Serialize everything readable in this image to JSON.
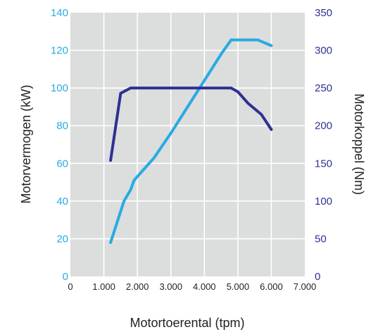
{
  "chart_data": {
    "type": "line",
    "xlabel": "Motortoerental (tpm)",
    "ylabel_left": "Motorvermogen (kW)",
    "ylabel_right": "Motorkoppel (Nm)",
    "xlim": [
      0,
      7000
    ],
    "ylim_left": [
      0,
      140
    ],
    "ylim_right": [
      0,
      350
    ],
    "grid": true,
    "x_ticks": [
      {
        "value": 0,
        "label": "0"
      },
      {
        "value": 1000,
        "label": "1.000"
      },
      {
        "value": 2000,
        "label": "2.000"
      },
      {
        "value": 3000,
        "label": "3.000"
      },
      {
        "value": 4000,
        "label": "4.000"
      },
      {
        "value": 5000,
        "label": "5.000"
      },
      {
        "value": 6000,
        "label": "6.000"
      },
      {
        "value": 7000,
        "label": "7.000"
      }
    ],
    "y_ticks_left": [
      {
        "value": 0,
        "label": "0"
      },
      {
        "value": 20,
        "label": "20"
      },
      {
        "value": 40,
        "label": "40"
      },
      {
        "value": 60,
        "label": "60"
      },
      {
        "value": 80,
        "label": "80"
      },
      {
        "value": 100,
        "label": "100"
      },
      {
        "value": 120,
        "label": "120"
      },
      {
        "value": 140,
        "label": "140"
      }
    ],
    "y_ticks_right": [
      {
        "value": 0,
        "label": "0"
      },
      {
        "value": 50,
        "label": "50"
      },
      {
        "value": 100,
        "label": "100"
      },
      {
        "value": 150,
        "label": "150"
      },
      {
        "value": 200,
        "label": "200"
      },
      {
        "value": 250,
        "label": "250"
      },
      {
        "value": 300,
        "label": "300"
      },
      {
        "value": 350,
        "label": "350"
      }
    ],
    "series": [
      {
        "axis": "left",
        "color": "#29abe2",
        "points": [
          [
            1200,
            18
          ],
          [
            1600,
            40
          ],
          [
            1800,
            46
          ],
          [
            1900,
            51
          ],
          [
            2500,
            63
          ],
          [
            3000,
            76
          ],
          [
            3500,
            90
          ],
          [
            4000,
            104
          ],
          [
            4500,
            118
          ],
          [
            4800,
            125.5
          ],
          [
            5000,
            125.5
          ],
          [
            5600,
            125.5
          ],
          [
            6000,
            122.5
          ]
        ]
      },
      {
        "axis": "right",
        "color": "#2e3192",
        "points": [
          [
            1200,
            154
          ],
          [
            1500,
            243
          ],
          [
            1800,
            250
          ],
          [
            2000,
            250
          ],
          [
            3000,
            250
          ],
          [
            4000,
            250
          ],
          [
            4800,
            250
          ],
          [
            5000,
            245
          ],
          [
            5300,
            230
          ],
          [
            5700,
            215
          ],
          [
            6000,
            195
          ]
        ]
      }
    ],
    "colors": {
      "plot_background": "#dcdddd",
      "grid": "#ffffff",
      "left_axis_ticks": "#29abe2",
      "right_axis_ticks": "#2e3192"
    }
  }
}
